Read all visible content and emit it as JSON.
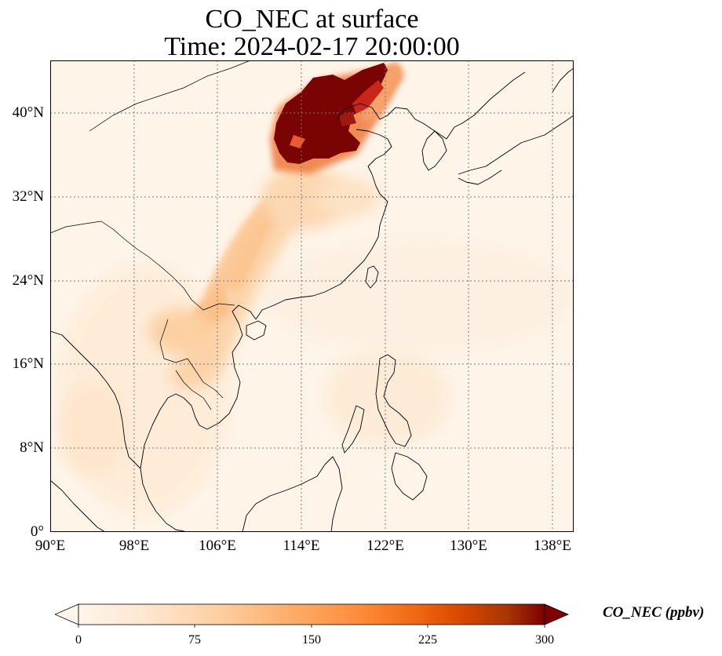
{
  "title": {
    "line1": "CO_NEC at surface",
    "line2": "Time: 2024-02-17 20:00:00"
  },
  "map": {
    "lon_range": [
      90,
      140
    ],
    "lat_range": [
      0,
      45
    ],
    "lon_ticks": [
      "90°E",
      "98°E",
      "106°E",
      "114°E",
      "122°E",
      "130°E",
      "138°E"
    ],
    "lat_ticks": [
      "0°",
      "8°N",
      "16°N",
      "24°N",
      "32°N",
      "40°N"
    ],
    "gridlines": true
  },
  "colorbar": {
    "label": "CO_NEC (ppbv)",
    "ticks": [
      "0",
      "75",
      "150",
      "225",
      "300"
    ],
    "min": 0,
    "max": 300,
    "extend": "both",
    "colormap": [
      "#fff5eb",
      "#fee6ce",
      "#fdd0a2",
      "#fdae6b",
      "#fd8d3c",
      "#f16913",
      "#d94801",
      "#a63603",
      "#7f0000"
    ]
  }
}
